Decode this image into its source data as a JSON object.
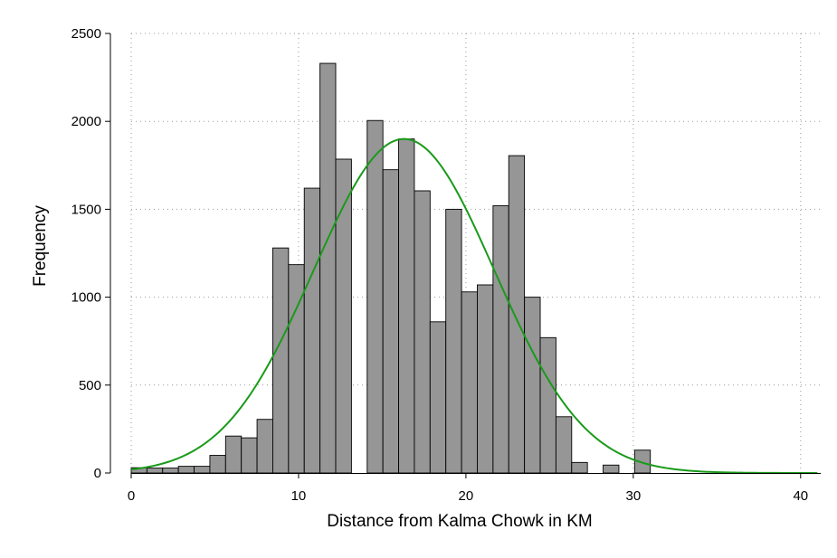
{
  "chart_data": {
    "type": "bar",
    "subtype": "histogram",
    "xlabel": "Distance from Kalma Chowk in KM",
    "ylabel": "Frequency",
    "xlim": [
      0,
      41.2
    ],
    "ylim": [
      0,
      2500
    ],
    "x_ticks": [
      0,
      10,
      20,
      30,
      40
    ],
    "y_ticks": [
      0,
      500,
      1000,
      1500,
      2000,
      2500
    ],
    "grid": "dotted",
    "bin_width": 0.94,
    "bar_color": "#969696",
    "bar_edge_color": "#000000",
    "curve_color": "#1a9a1a",
    "bins": [
      {
        "x": 0.0,
        "value": 30
      },
      {
        "x": 0.94,
        "value": 28
      },
      {
        "x": 1.88,
        "value": 28
      },
      {
        "x": 2.82,
        "value": 38
      },
      {
        "x": 3.76,
        "value": 38
      },
      {
        "x": 4.7,
        "value": 100
      },
      {
        "x": 5.64,
        "value": 210
      },
      {
        "x": 6.58,
        "value": 200
      },
      {
        "x": 7.52,
        "value": 305
      },
      {
        "x": 8.46,
        "value": 1280
      },
      {
        "x": 9.4,
        "value": 1185
      },
      {
        "x": 10.34,
        "value": 1620
      },
      {
        "x": 11.28,
        "value": 2330
      },
      {
        "x": 12.22,
        "value": 1785
      },
      {
        "x": 14.1,
        "value": 2005
      },
      {
        "x": 15.04,
        "value": 1725
      },
      {
        "x": 15.98,
        "value": 1900
      },
      {
        "x": 16.92,
        "value": 1605
      },
      {
        "x": 17.86,
        "value": 860
      },
      {
        "x": 18.8,
        "value": 1500
      },
      {
        "x": 19.74,
        "value": 1030
      },
      {
        "x": 20.68,
        "value": 1070
      },
      {
        "x": 21.62,
        "value": 1520
      },
      {
        "x": 22.56,
        "value": 1805
      },
      {
        "x": 23.5,
        "value": 1000
      },
      {
        "x": 24.44,
        "value": 770
      },
      {
        "x": 25.38,
        "value": 320
      },
      {
        "x": 26.32,
        "value": 60
      },
      {
        "x": 28.2,
        "value": 45
      },
      {
        "x": 30.08,
        "value": 130
      }
    ],
    "normal_curve": {
      "mean": 16.3,
      "sd": 5.4,
      "peak": 1900,
      "x_range": [
        0,
        41
      ]
    }
  }
}
